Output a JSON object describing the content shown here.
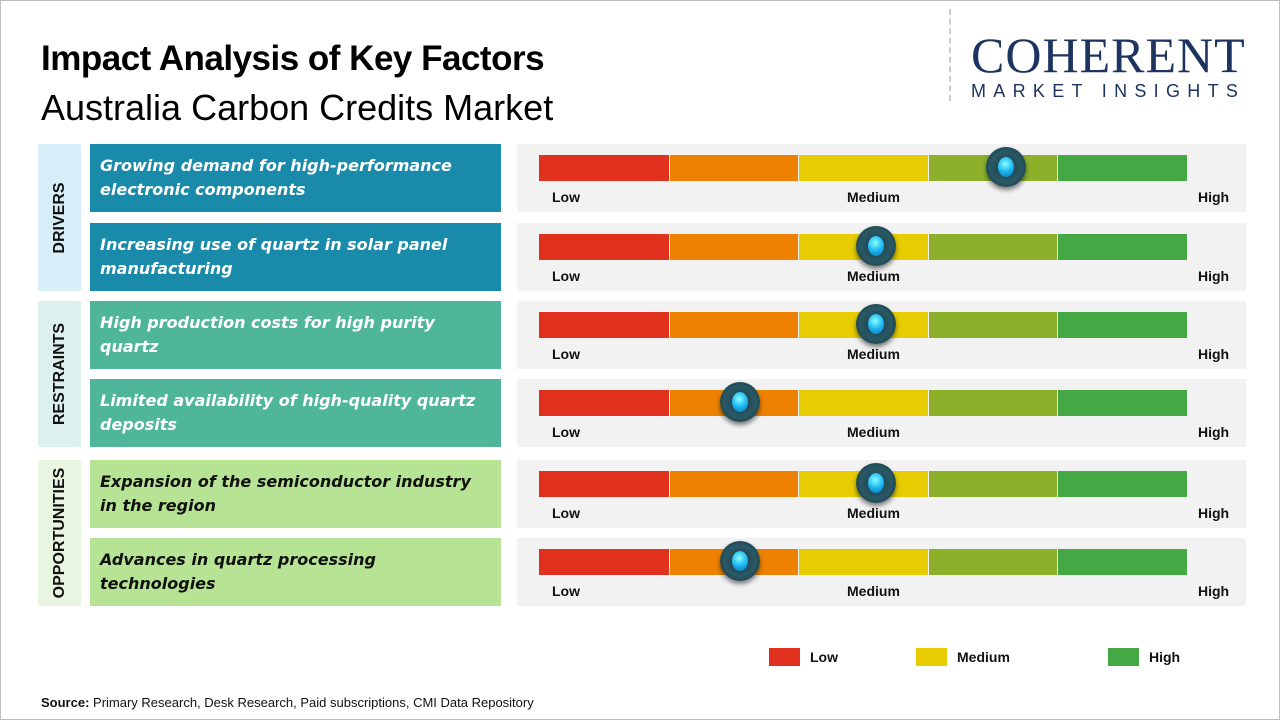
{
  "header": {
    "title": "Impact Analysis of Key Factors",
    "subtitle": "Australia Carbon Credits Market"
  },
  "logo": {
    "main": "COHERENT",
    "sub": "MARKET INSIGHTS"
  },
  "chart_data": {
    "type": "gauge",
    "scale_labels": [
      "Low",
      "Medium",
      "High"
    ],
    "segment_colors": [
      "#e0301e",
      "#ee8200",
      "#e6cc00",
      "#8db02a",
      "#44a845"
    ],
    "categories": [
      {
        "name": "DRIVERS",
        "bg": "#d6eef8",
        "box": "#1a8aaa",
        "text": "#ffffff"
      },
      {
        "name": "RESTRAINTS",
        "bg": "#dcf0ee",
        "box": "#4fb69a",
        "text": "#ffffff"
      },
      {
        "name": "OPPORTUNITIES",
        "bg": "#e8f5e0",
        "box": "#b6e394",
        "text": "#111111"
      }
    ],
    "factors": [
      {
        "category": 0,
        "label": "Growing demand for high-performance electronic components",
        "impact": 0.72
      },
      {
        "category": 0,
        "label": "Increasing use of quartz in solar panel manufacturing",
        "impact": 0.52
      },
      {
        "category": 1,
        "label": "High production costs for high purity quartz",
        "impact": 0.52
      },
      {
        "category": 1,
        "label": "Limited availability of high-quality quartz deposits",
        "impact": 0.31
      },
      {
        "category": 2,
        "label": "Expansion of the semiconductor industry in the region",
        "impact": 0.52
      },
      {
        "category": 2,
        "label": "Advances in quartz processing technologies",
        "impact": 0.31
      }
    ],
    "legend": [
      {
        "label": "Low",
        "color": "#e0301e"
      },
      {
        "label": "Medium",
        "color": "#e6cc00"
      },
      {
        "label": "High",
        "color": "#44a845"
      }
    ]
  },
  "footer": {
    "source_label": "Source:",
    "source_text": " Primary Research, Desk Research, Paid subscriptions, CMI Data Repository"
  }
}
